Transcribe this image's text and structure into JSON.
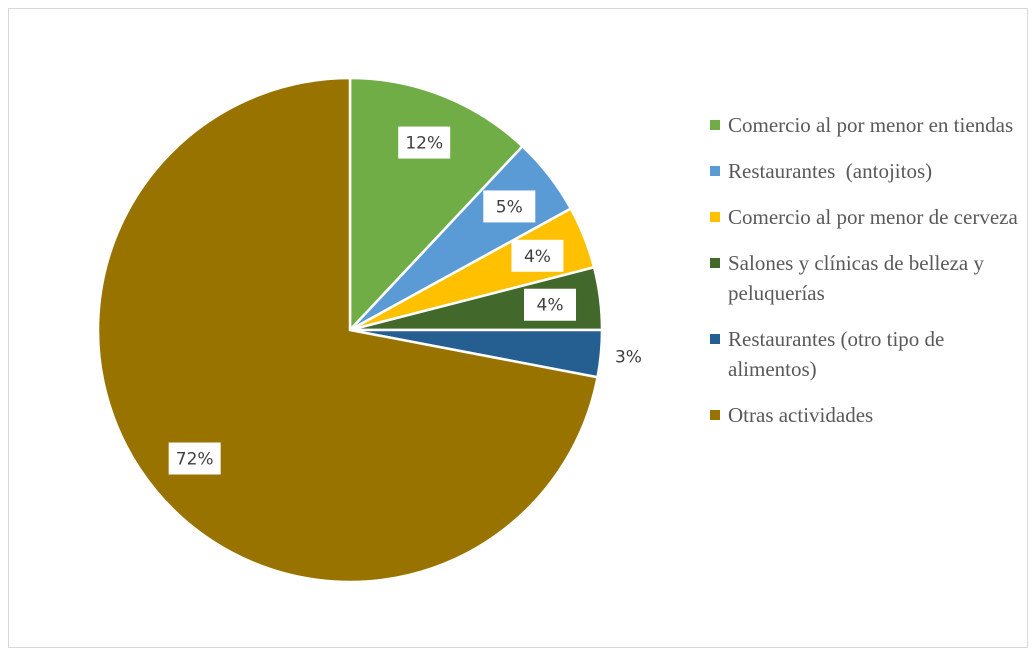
{
  "chart_data": {
    "type": "pie",
    "categories": [
      "Comercio al por menor en tiendas",
      "Restaurantes  (antojitos)",
      "Comercio al por menor de cerveza",
      "Salones y clínicas de belleza y peluquerías",
      "Restaurantes (otro tipo de alimentos)",
      "Otras actividades"
    ],
    "values": [
      12,
      5,
      4,
      4,
      3,
      72
    ],
    "value_labels": [
      "12%",
      "5%",
      "4%",
      "4%",
      "3%",
      "72%"
    ],
    "colors": [
      "#70ad47",
      "#5b9bd5",
      "#ffc000",
      "#43682b",
      "#255e91",
      "#997300"
    ],
    "legend": "right"
  }
}
